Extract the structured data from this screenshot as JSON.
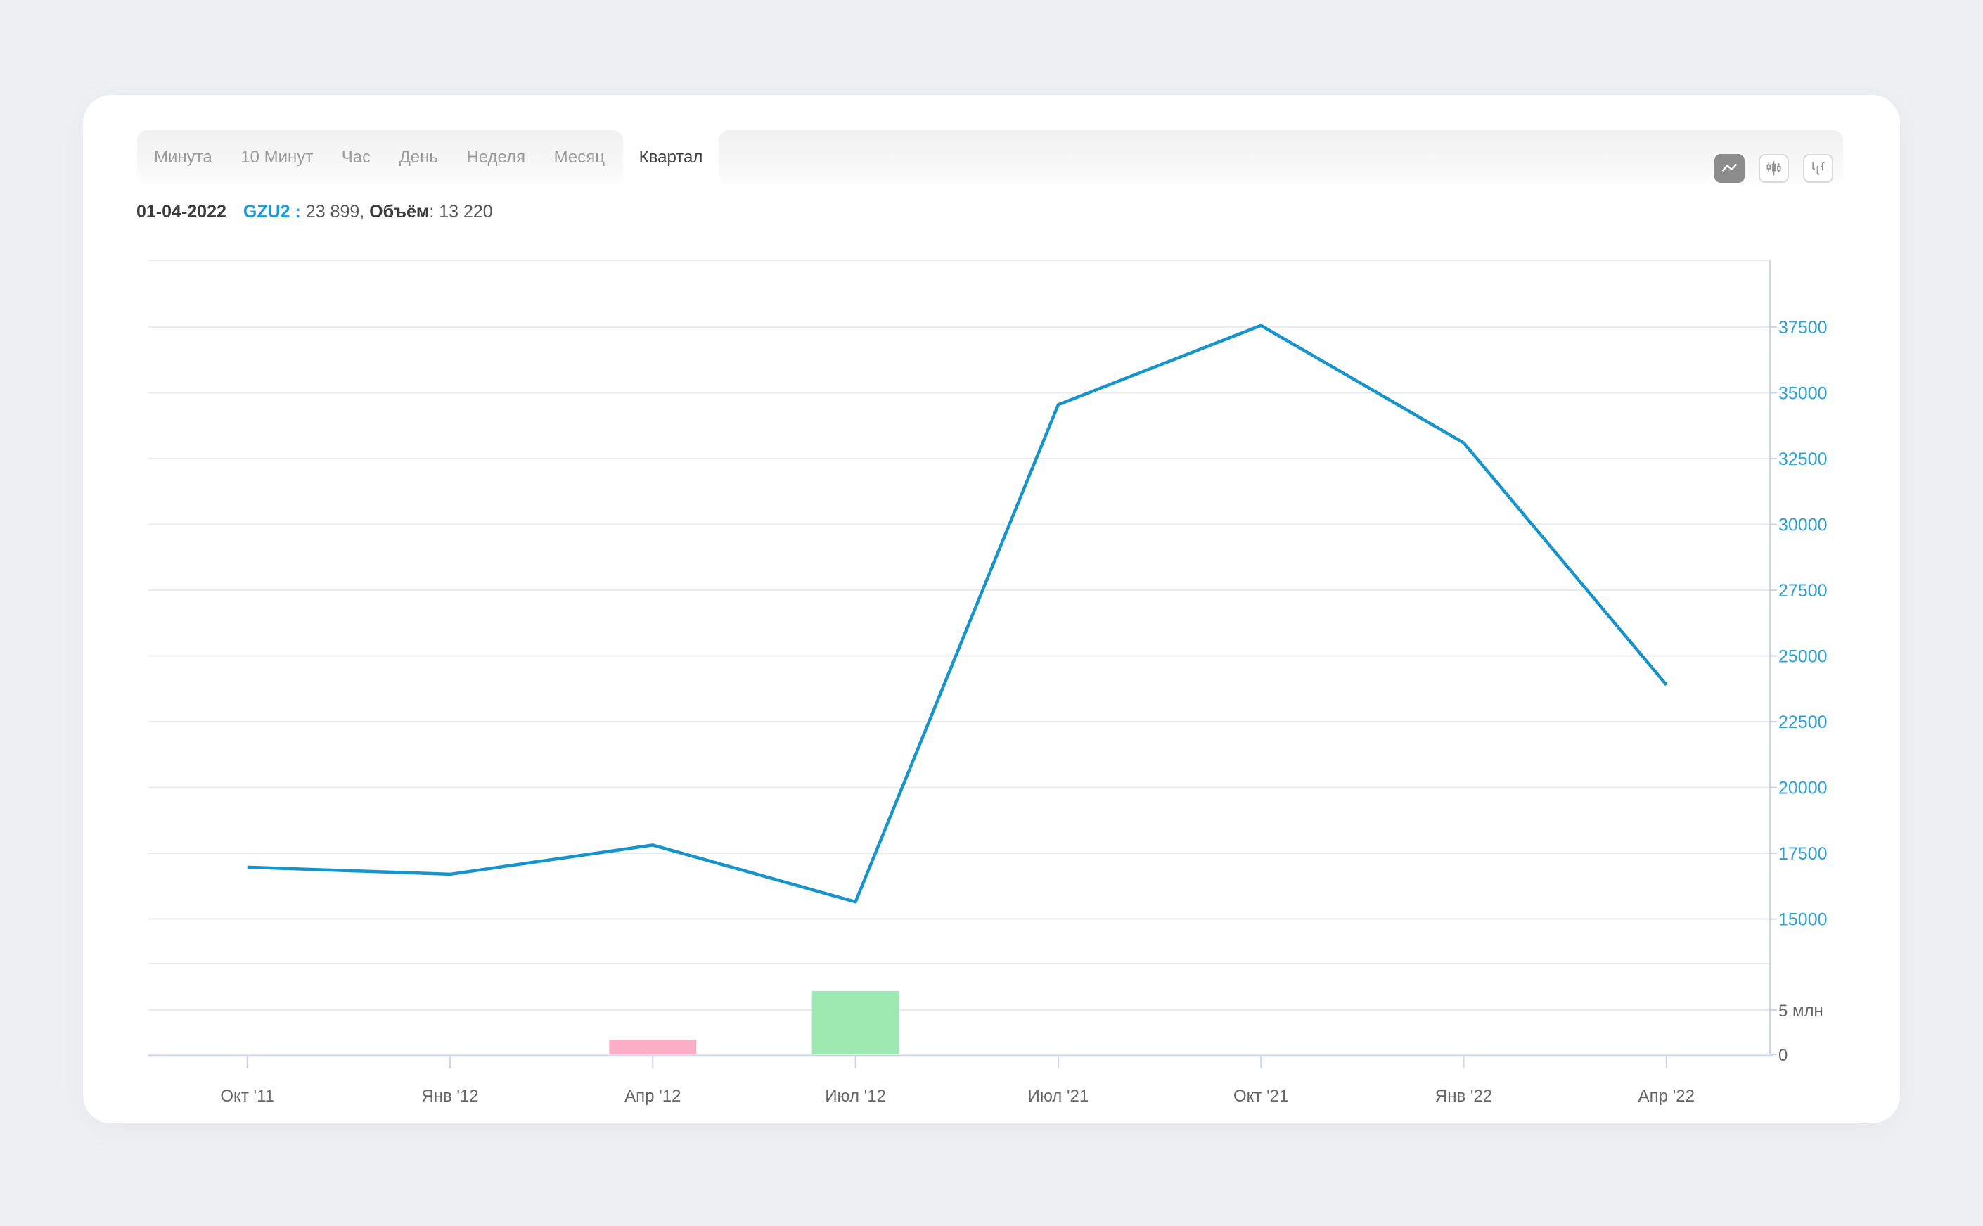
{
  "page": {
    "background": "#eef0f2",
    "card_background": "#ffffff"
  },
  "toolbar": {
    "interval_tabs": [
      {
        "label": "Минута",
        "selected": false
      },
      {
        "label": "10 Минут",
        "selected": false
      },
      {
        "label": "Час",
        "selected": false
      },
      {
        "label": "День",
        "selected": false
      },
      {
        "label": "Неделя",
        "selected": false
      },
      {
        "label": "Месяц",
        "selected": false
      },
      {
        "label": "Квартал",
        "selected": true
      }
    ],
    "chart_type_buttons": [
      {
        "name": "line-chart",
        "selected": true
      },
      {
        "name": "candlestick-chart",
        "selected": false
      },
      {
        "name": "ohlc-chart",
        "selected": false
      }
    ]
  },
  "legend": {
    "date": "01-04-2022",
    "symbol_part": "GZU2 :",
    "price_part": " 23 899, ",
    "volume_label": "Объём",
    "volume_part": ": 13 220",
    "symbol_color": "#1c9ad6"
  },
  "chart_data": {
    "type": "line",
    "title": "",
    "x_labels": [
      "Окт '11",
      "Янв '12",
      "Апр '12",
      "Июл '12",
      "Июл '21",
      "Окт '21",
      "Янв '22",
      "Апр '22"
    ],
    "series": [
      {
        "name": "GZU2",
        "type": "line",
        "color": "#1794cb",
        "values": [
          16970,
          16700,
          17810,
          15650,
          34550,
          37560,
          33100,
          23899
        ]
      }
    ],
    "y_axis": {
      "position": "right",
      "ticks": [
        15000,
        17500,
        20000,
        22500,
        25000,
        27500,
        30000,
        32500,
        35000,
        37500
      ],
      "ylim": [
        13350,
        40040
      ],
      "label_color": "#2ba0d9"
    },
    "x_axis": {
      "label_color": "#666666"
    },
    "volume_panel": {
      "ticks": [
        {
          "value": 0,
          "label": "0"
        },
        {
          "value": 5000000,
          "label": "5 млн"
        }
      ],
      "ylim": [
        0,
        10300000
      ],
      "label_color": "#666666",
      "bars": [
        {
          "x_label": "Апр '12",
          "x_index": 2,
          "value": 1650000,
          "color": "#fbaec5"
        },
        {
          "x_label": "Июл '12",
          "x_index": 3,
          "value": 7150000,
          "color": "#9ee9b2"
        }
      ],
      "last_bar_volume": 13220
    },
    "grid": {
      "color": "#ebebeb",
      "axis_line_color": "#ccd6eb",
      "legend_position": "none"
    }
  }
}
